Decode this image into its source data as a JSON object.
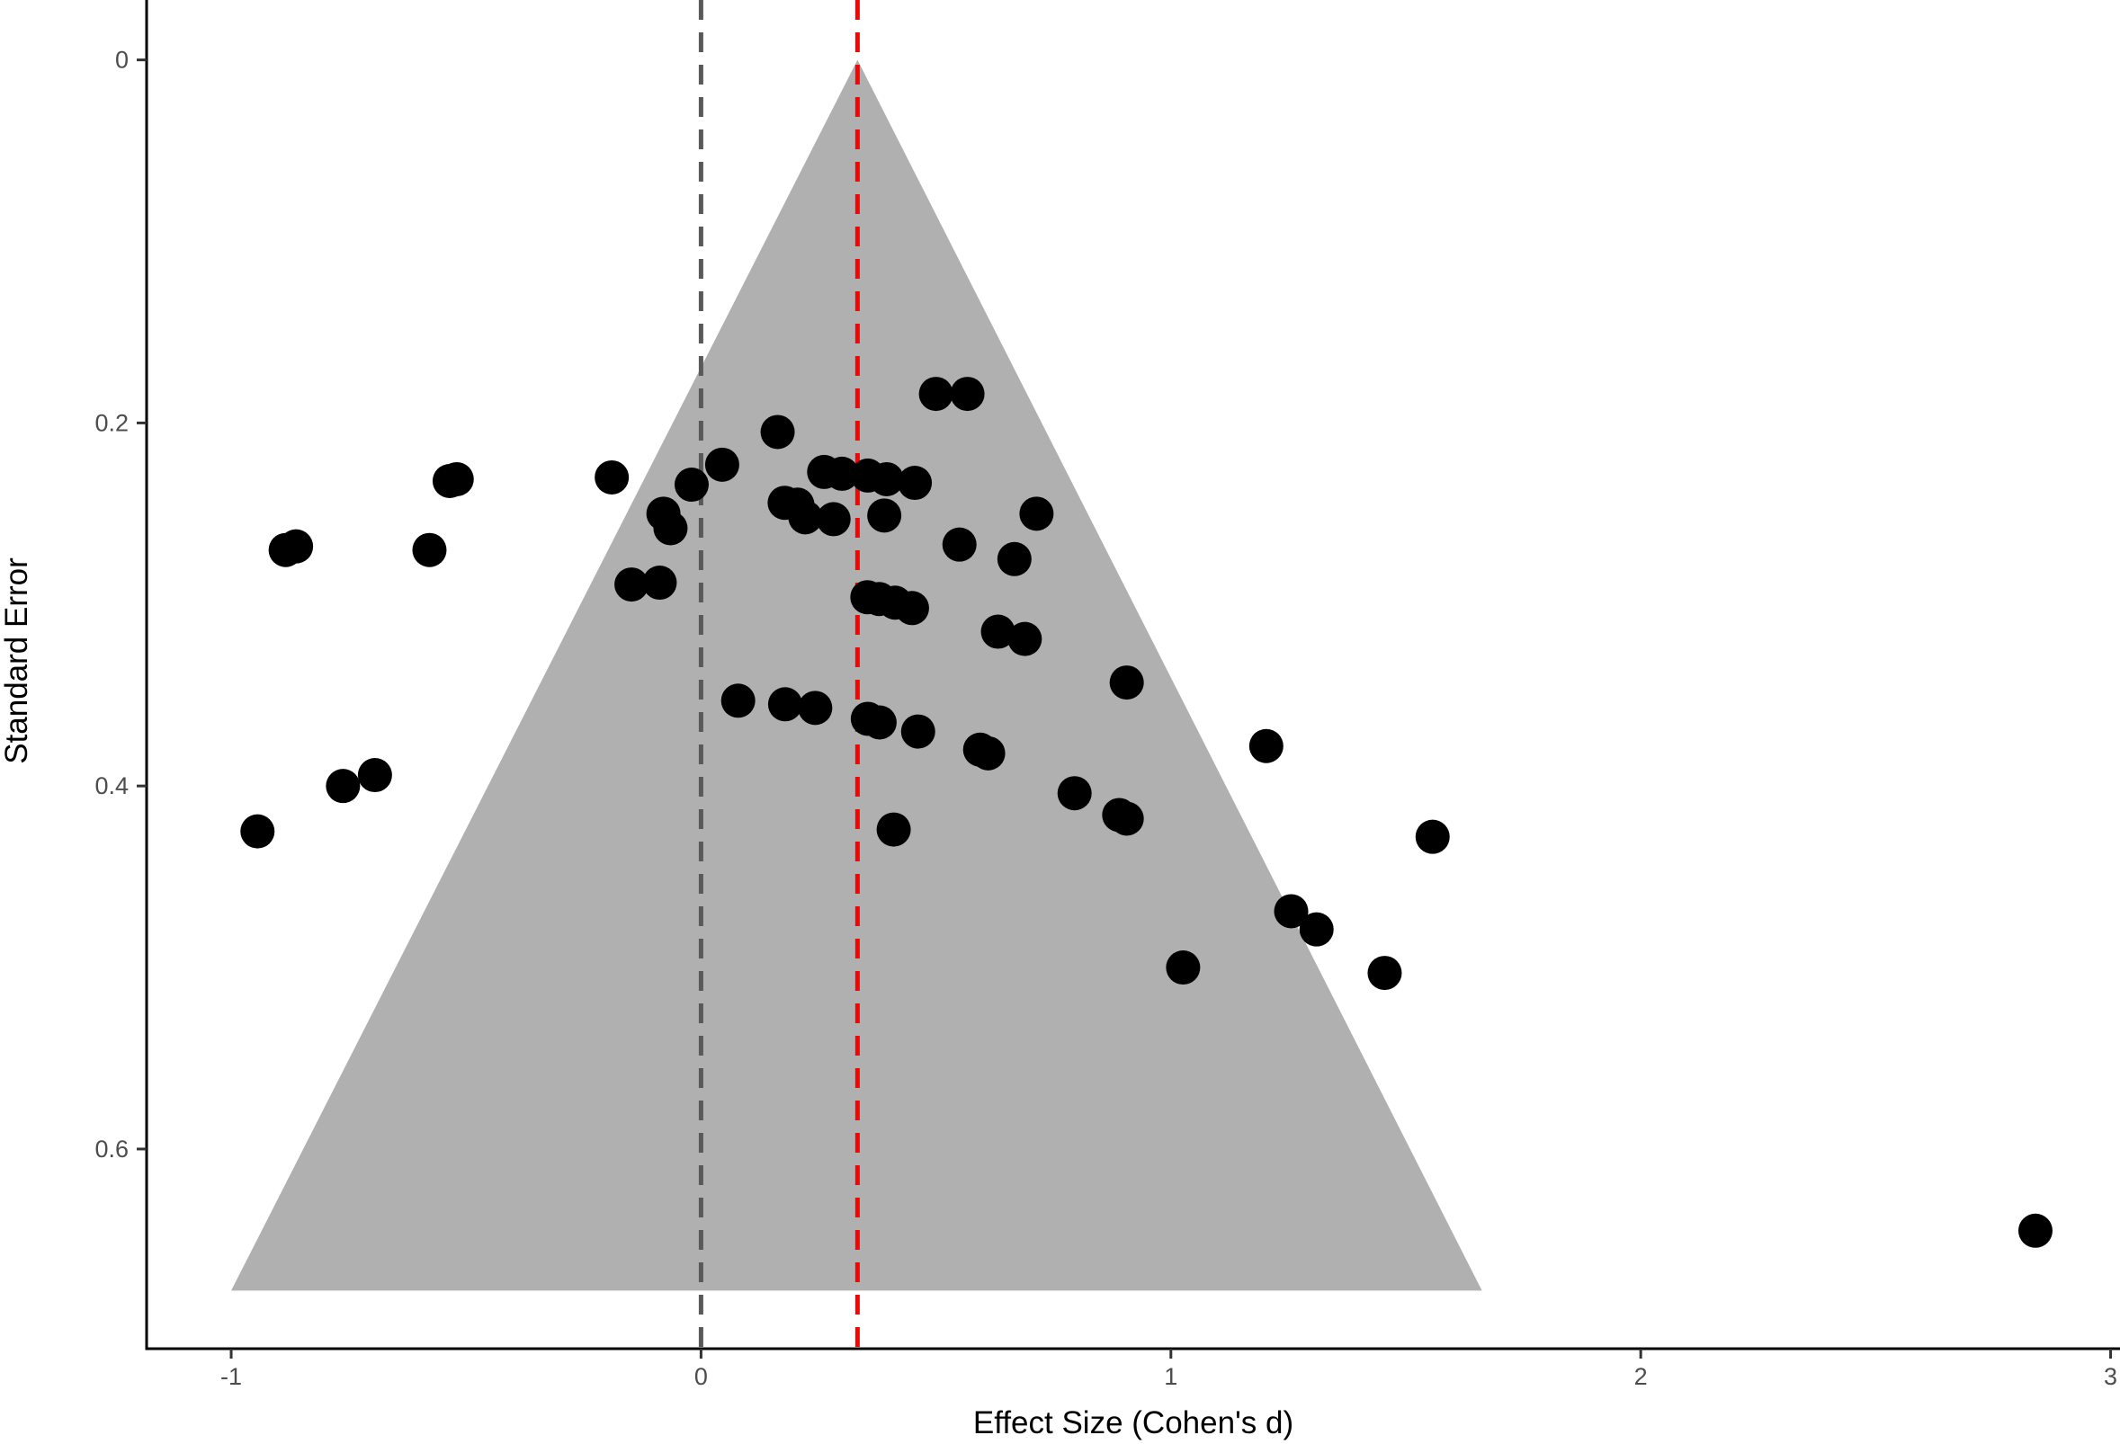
{
  "chart_data": {
    "type": "scatter",
    "xlabel": "Effect Size (Cohen's d)",
    "ylabel": "Standard Error",
    "xlim": [
      -1.18,
      3.02
    ],
    "ylim": [
      -0.033,
      0.71
    ],
    "y_reversed": true,
    "x_ticks": [
      {
        "value": -1,
        "label": "-1"
      },
      {
        "value": 0,
        "label": "0"
      },
      {
        "value": 1,
        "label": "1"
      },
      {
        "value": 2,
        "label": "2"
      },
      {
        "value": 3,
        "label": "3"
      }
    ],
    "y_ticks": [
      {
        "value": 0,
        "label": "0"
      },
      {
        "value": 0.2,
        "label": "0.2"
      },
      {
        "value": 0.4,
        "label": "0.4"
      },
      {
        "value": 0.6,
        "label": "0.6"
      }
    ],
    "grid": false,
    "reference_lines": [
      {
        "name": "null-effect",
        "x": 0,
        "color": "#595959",
        "style": "dashed"
      },
      {
        "name": "pooled-effect",
        "x": 0.333,
        "color": "#ff0000",
        "style": "dashed"
      }
    ],
    "funnel": {
      "apex": [
        0.333,
        0
      ],
      "base_y": 0.678,
      "base_x": [
        -1.0,
        1.662
      ],
      "color": "#b0b0b0"
    },
    "point_color": "#000000",
    "points": [
      {
        "x": 0.5,
        "y": 0.184
      },
      {
        "x": 0.567,
        "y": 0.184
      },
      {
        "x": 0.163,
        "y": 0.205
      },
      {
        "x": 0.045,
        "y": 0.223
      },
      {
        "x": 0.262,
        "y": 0.227
      },
      {
        "x": 0.3,
        "y": 0.228
      },
      {
        "x": 0.355,
        "y": 0.229
      },
      {
        "x": 0.395,
        "y": 0.231
      },
      {
        "x": 0.455,
        "y": 0.233
      },
      {
        "x": -0.19,
        "y": 0.23
      },
      {
        "x": -0.02,
        "y": 0.234
      },
      {
        "x": -0.535,
        "y": 0.232
      },
      {
        "x": -0.52,
        "y": 0.231
      },
      {
        "x": 0.178,
        "y": 0.244
      },
      {
        "x": 0.205,
        "y": 0.245
      },
      {
        "x": 0.222,
        "y": 0.252
      },
      {
        "x": 0.282,
        "y": 0.253
      },
      {
        "x": 0.39,
        "y": 0.251
      },
      {
        "x": 0.714,
        "y": 0.25
      },
      {
        "x": -0.08,
        "y": 0.25
      },
      {
        "x": -0.065,
        "y": 0.258
      },
      {
        "x": -0.884,
        "y": 0.27
      },
      {
        "x": -0.862,
        "y": 0.268
      },
      {
        "x": -0.578,
        "y": 0.27
      },
      {
        "x": 0.55,
        "y": 0.267
      },
      {
        "x": 0.667,
        "y": 0.275
      },
      {
        "x": -0.148,
        "y": 0.289
      },
      {
        "x": -0.088,
        "y": 0.288
      },
      {
        "x": 0.354,
        "y": 0.296
      },
      {
        "x": 0.379,
        "y": 0.297
      },
      {
        "x": 0.413,
        "y": 0.299
      },
      {
        "x": 0.449,
        "y": 0.302
      },
      {
        "x": 0.632,
        "y": 0.315
      },
      {
        "x": 0.689,
        "y": 0.319
      },
      {
        "x": 0.906,
        "y": 0.343
      },
      {
        "x": 0.079,
        "y": 0.353
      },
      {
        "x": 0.179,
        "y": 0.355
      },
      {
        "x": 0.243,
        "y": 0.357
      },
      {
        "x": 0.355,
        "y": 0.363
      },
      {
        "x": 0.38,
        "y": 0.365
      },
      {
        "x": 0.462,
        "y": 0.37
      },
      {
        "x": 1.203,
        "y": 0.378
      },
      {
        "x": 0.594,
        "y": 0.38
      },
      {
        "x": 0.611,
        "y": 0.382
      },
      {
        "x": -0.694,
        "y": 0.394
      },
      {
        "x": -0.762,
        "y": 0.4
      },
      {
        "x": 0.795,
        "y": 0.404
      },
      {
        "x": 0.89,
        "y": 0.416
      },
      {
        "x": 0.906,
        "y": 0.418
      },
      {
        "x": 0.41,
        "y": 0.424
      },
      {
        "x": -0.944,
        "y": 0.425
      },
      {
        "x": 1.557,
        "y": 0.428
      },
      {
        "x": 1.256,
        "y": 0.469
      },
      {
        "x": 1.31,
        "y": 0.479
      },
      {
        "x": 1.026,
        "y": 0.5
      },
      {
        "x": 1.455,
        "y": 0.503
      },
      {
        "x": 2.84,
        "y": 0.645
      }
    ]
  }
}
